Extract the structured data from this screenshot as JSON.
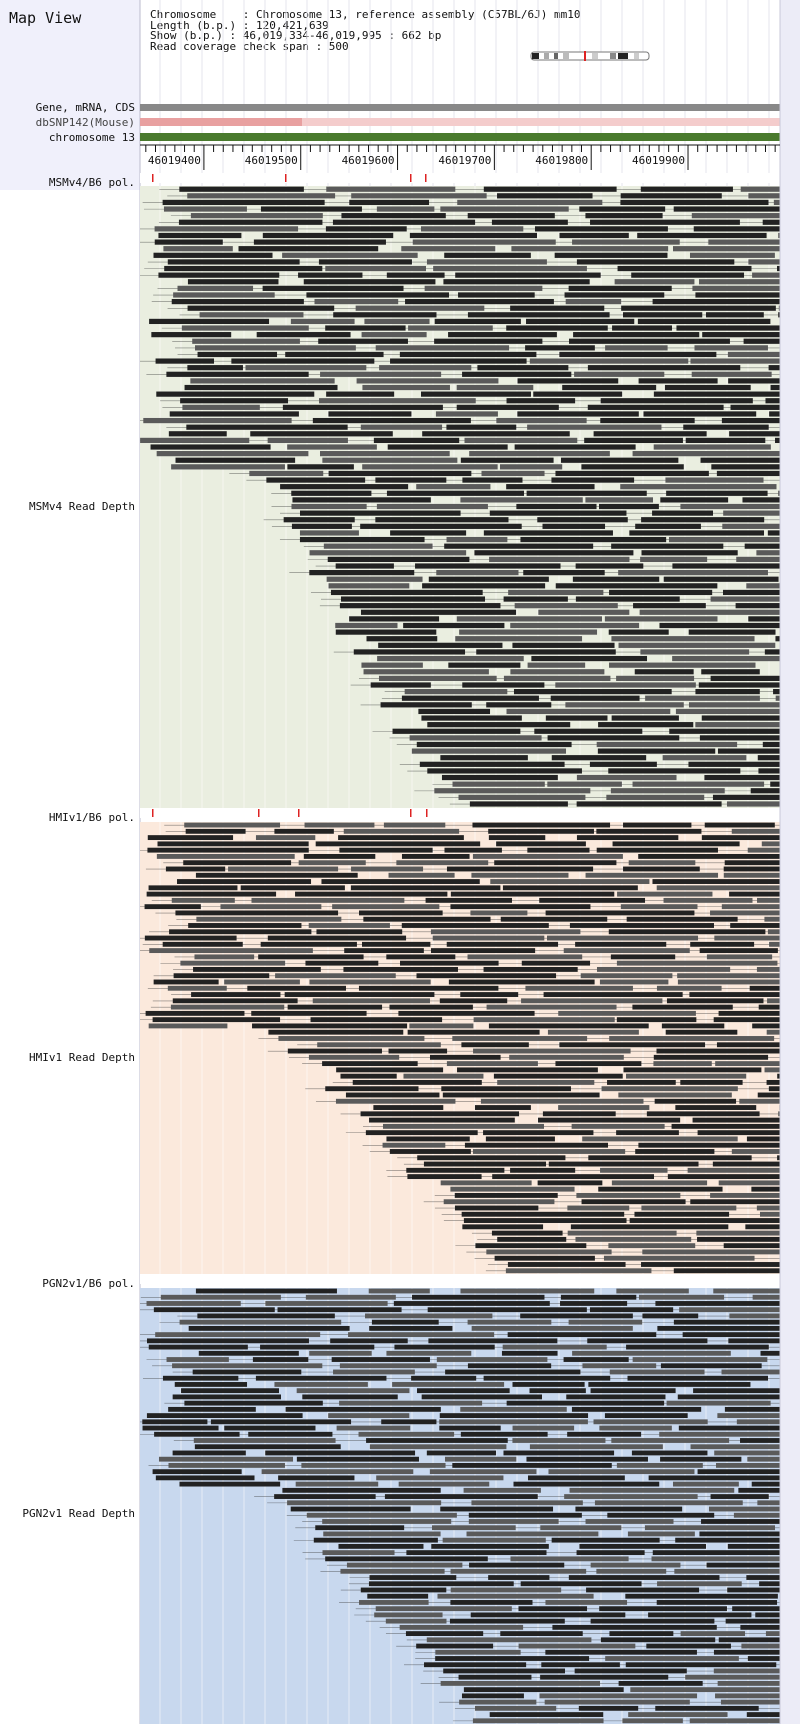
{
  "header": {
    "title": "Map View",
    "info_lines": [
      "Chromosome    : Chromosome 13, reference assembly (C57BL/6J) mm10",
      "Length (b.p.) : 120,421,639",
      "Show (b.p.) : 46,019,334-46,019,995 : 662 bp",
      "Read coverage check span : 500"
    ]
  },
  "tracks": {
    "gene_label": "Gene, mRNA, CDS",
    "snp_label": "dbSNP142(Mouse)",
    "chrom_label": "chromosome 13"
  },
  "ruler": {
    "ticks": [
      "46019400",
      "46019500",
      "46019600",
      "46019700",
      "46019800",
      "46019900"
    ]
  },
  "panels": [
    {
      "pol_label": "MSMv4/B6 pol.",
      "depth_label": "MSMv4 Read Depth",
      "color": "#eaeee0"
    },
    {
      "pol_label": "HMIv1/B6 pol.",
      "depth_label": "HMIv1 Read Depth",
      "color": "#fbe9dc"
    },
    {
      "pol_label": "PGN2v1/B6 pol.",
      "depth_label": "PGN2v1 Read Depth",
      "color": "#c8d8ee"
    }
  ],
  "colors": {
    "gene_bar": "#888888",
    "snp_bar": "#e8a0a0",
    "chrom_bar": "#4a7a2e",
    "read_dark": "#222222",
    "read_mid": "#5a5a5a",
    "snp_marker": "#dd2222"
  }
}
